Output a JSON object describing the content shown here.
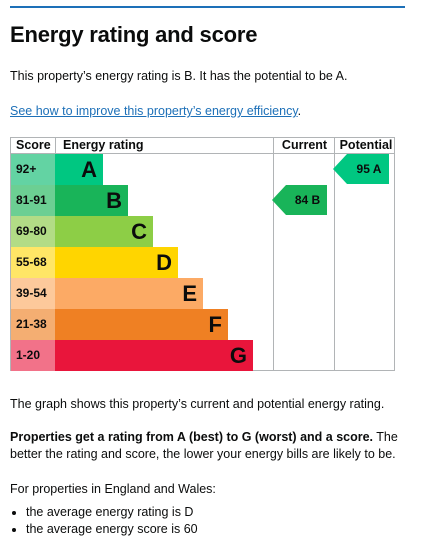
{
  "title": "Energy rating and score",
  "intro": "This property’s energy rating is B. It has the potential to be A.",
  "improve_link": "See how to improve this property’s energy efficiency",
  "improve_link_suffix": ".",
  "chart": {
    "headers": {
      "score": "Score",
      "rating": "Energy rating",
      "current": "Current",
      "potential": "Potential"
    },
    "bands": [
      {
        "score": "92+",
        "letter": "A",
        "color": "#00c781"
      },
      {
        "score": "81-91",
        "letter": "B",
        "color": "#19b459"
      },
      {
        "score": "69-80",
        "letter": "C",
        "color": "#8dce46"
      },
      {
        "score": "55-68",
        "letter": "D",
        "color": "#ffd500"
      },
      {
        "score": "39-54",
        "letter": "E",
        "color": "#fcaa65"
      },
      {
        "score": "21-38",
        "letter": "F",
        "color": "#ef8023"
      },
      {
        "score": "1-20",
        "letter": "G",
        "color": "#e9153b"
      }
    ],
    "current": {
      "score": 84,
      "band": "B",
      "label": "84 B"
    },
    "potential": {
      "score": 95,
      "band": "A",
      "label": "95 A"
    }
  },
  "graph_note": "The graph shows this property’s current and potential energy rating.",
  "ratings_bold": "Properties get a rating from A (best) to G (worst) and a score.",
  "ratings_rest": " The better the rating and score, the lower your energy bills are likely to be.",
  "england_wales": "For properties in England and Wales:",
  "averages": [
    "the average energy rating is D",
    "the average energy score is 60"
  ]
}
